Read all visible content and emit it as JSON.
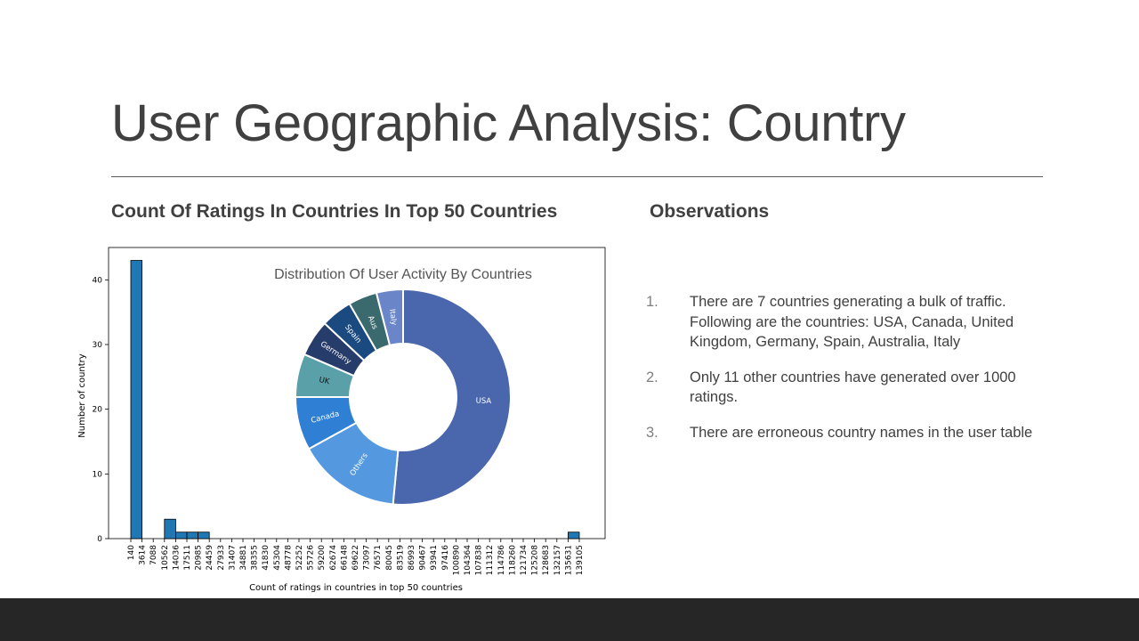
{
  "slide": {
    "title": "User Geographic Analysis: Country",
    "left_heading": "Count  Of Ratings  In Countries  In Top 50 Countries",
    "right_heading": "Observations"
  },
  "observations": [
    {
      "num": "1.",
      "text": "There are 7 countries generating a bulk of traffic. Following are the countries: USA,  Canada,  United Kingdom,  Germany,  Spain, Australia,  Italy"
    },
    {
      "num": "2.",
      "text": "Only 11 other countries have generated  over 1000 ratings."
    },
    {
      "num": "3.",
      "text": "There are erroneous country names in the  user table"
    }
  ],
  "chart_data": [
    {
      "type": "bar",
      "subtype": "histogram",
      "xlabel": "Count of ratings in countries in top 50 countries",
      "ylabel": "Number of country",
      "ylim": [
        0,
        45
      ],
      "yticks": [
        0,
        10,
        20,
        30,
        40
      ],
      "bar_color": "#1f77b4",
      "xtick_labels": [
        "140",
        "3614",
        "7088",
        "10562",
        "14036",
        "17511",
        "20985",
        "24459",
        "27933",
        "31407",
        "34881",
        "38355",
        "41830",
        "45304",
        "48778",
        "52252",
        "55726",
        "59200",
        "62674",
        "66148",
        "69622",
        "73097",
        "76571",
        "80045",
        "83519",
        "86993",
        "90467",
        "93941",
        "97416",
        "100890",
        "104364",
        "107838",
        "111312",
        "114786",
        "118260",
        "121734",
        "125208",
        "128683",
        "132157",
        "135631",
        "139105"
      ],
      "bins": [
        {
          "start": 140,
          "count": 43
        },
        {
          "start": 3614,
          "count": 0
        },
        {
          "start": 7088,
          "count": 0
        },
        {
          "start": 10562,
          "count": 3
        },
        {
          "start": 14036,
          "count": 1
        },
        {
          "start": 17511,
          "count": 1
        },
        {
          "start": 20985,
          "count": 1
        },
        {
          "start": 24459,
          "count": 0
        },
        {
          "start": 135631,
          "count": 1
        }
      ],
      "grid": false
    },
    {
      "type": "pie",
      "subtype": "donut",
      "title": "Distribution Of User Activity By Countries",
      "slices": [
        {
          "label": "USA",
          "value": 51.5,
          "color": "#4a67ad"
        },
        {
          "label": "Others",
          "value": 15.5,
          "color": "#5499e0"
        },
        {
          "label": "Canada",
          "value": 8.0,
          "color": "#2f7fd4"
        },
        {
          "label": "UK",
          "value": 6.5,
          "color": "#5aa0a9"
        },
        {
          "label": "Germany",
          "value": 5.5,
          "color": "#263d6b"
        },
        {
          "label": "Spain",
          "value": 4.7,
          "color": "#1b4a80"
        },
        {
          "label": "Aus",
          "value": 4.3,
          "color": "#3a6a6e"
        },
        {
          "label": "Italy",
          "value": 4.0,
          "color": "#6b86c8"
        }
      ]
    }
  ]
}
